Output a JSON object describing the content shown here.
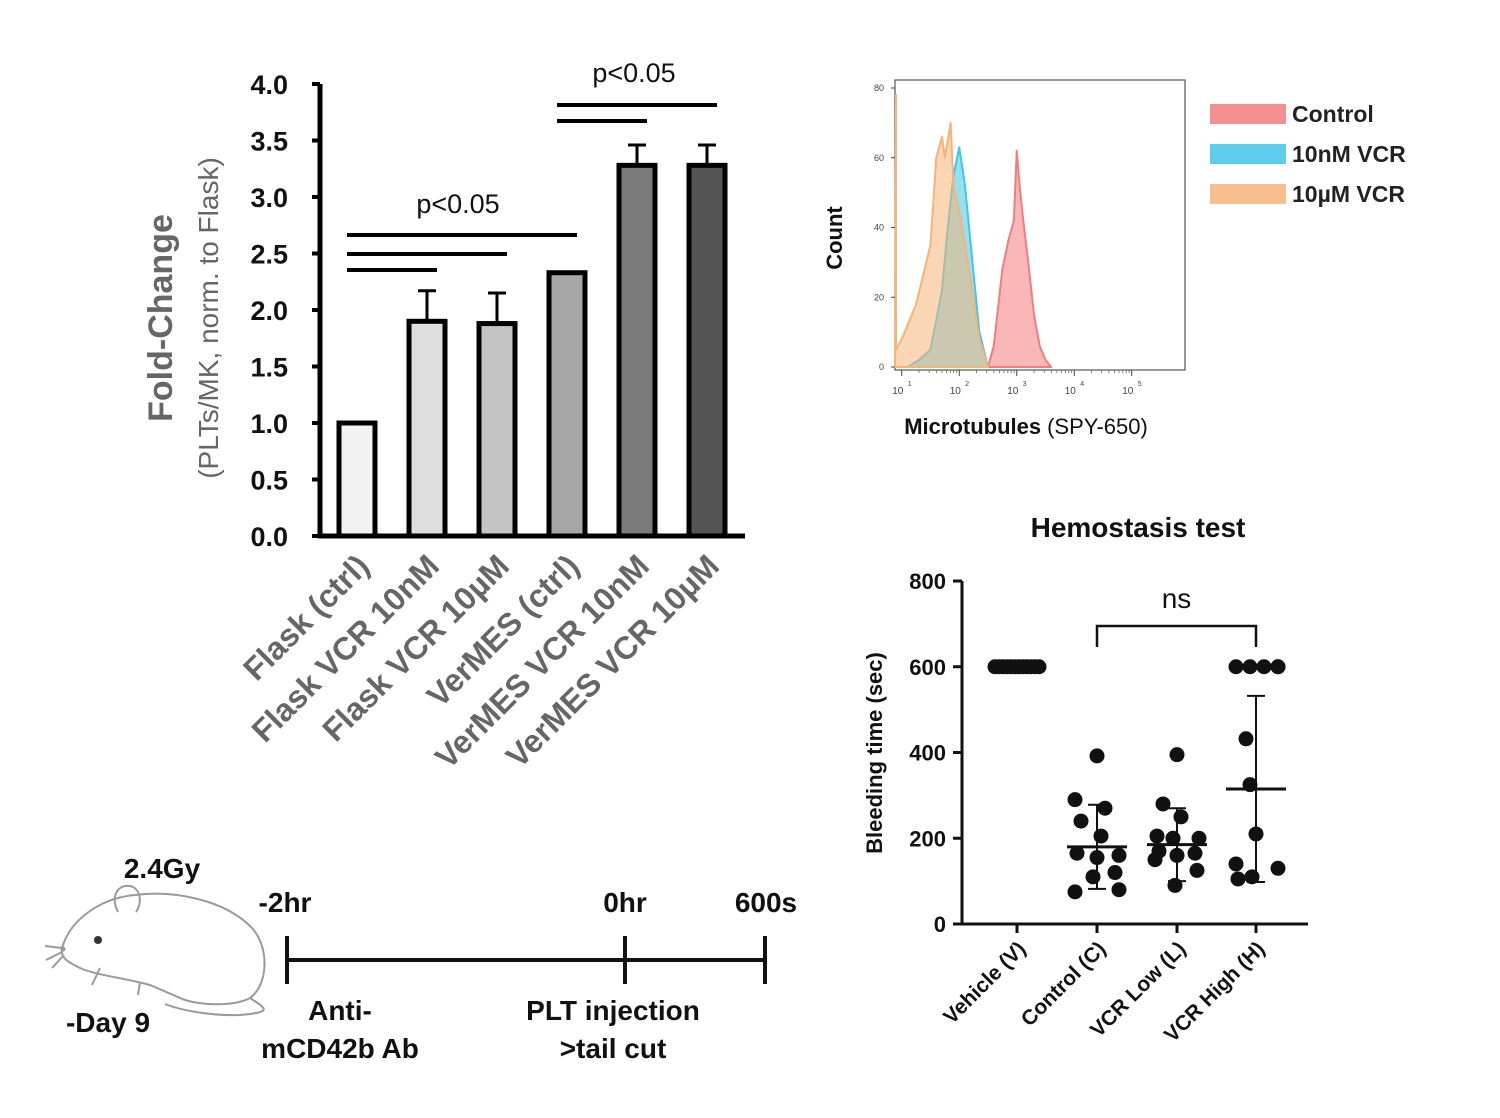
{
  "chart_data": [
    {
      "type": "bar",
      "title": "",
      "ylabel_main": "Fold-Change",
      "ylabel_sub": "(PLTs/MK, norm. to Flask)",
      "ylim": [
        0,
        4
      ],
      "yticks": [
        "0.0",
        "0.5",
        "1.0",
        "1.5",
        "2.0",
        "2.5",
        "3.0",
        "3.5",
        "4.0"
      ],
      "categories": [
        "Flask (ctrl)",
        "Flask VCR 10nM",
        "Flask VCR 10µM",
        "VerMES (ctrl)",
        "VerMES VCR 10nM",
        "VerMES VCR 10µM"
      ],
      "values": [
        1.0,
        1.9,
        1.88,
        2.33,
        3.28,
        3.28
      ],
      "errors": [
        0,
        0.27,
        0.27,
        0,
        0.18,
        0.18
      ],
      "colors": [
        "#f2f2f2",
        "#dedede",
        "#c4c4c4",
        "#a6a6a6",
        "#7a7a7a",
        "#555555"
      ],
      "annotations": [
        {
          "label": "p<0.05",
          "lines": [
            [
              0,
              1
            ],
            [
              0,
              2
            ],
            [
              0,
              3
            ]
          ]
        },
        {
          "label": "p<0.05",
          "lines": [
            [
              3,
              4
            ],
            [
              3,
              5
            ]
          ]
        }
      ]
    },
    {
      "type": "area",
      "title": "",
      "xlabel_bold": "Microtubules",
      "xlabel_rest": "(SPY-650)",
      "ylabel": "Count",
      "xscale": "log",
      "ylim": [
        0,
        80
      ],
      "yticks": [
        "0",
        "20",
        "40",
        "60",
        "80"
      ],
      "xticks": [
        "10",
        "10",
        "10",
        "10",
        "10"
      ],
      "xtick_exponents": [
        "1",
        "2",
        "3",
        "4",
        "5"
      ],
      "legend_position": "right",
      "series": [
        {
          "name": "Control",
          "color": "#f47c7c",
          "x": [
            2.5,
            2.6,
            2.75,
            2.85,
            2.95,
            3.0,
            3.05,
            3.1,
            3.2,
            3.3,
            3.4,
            3.5,
            3.6
          ],
          "y": [
            0,
            6,
            28,
            36,
            42,
            62,
            52,
            44,
            30,
            15,
            6,
            2,
            0
          ]
        },
        {
          "name": "10nM VCR",
          "color": "#3fc6e8",
          "x": [
            1.1,
            1.3,
            1.5,
            1.7,
            1.8,
            1.9,
            2.0,
            2.1,
            2.2,
            2.35,
            2.5
          ],
          "y": [
            0,
            2,
            5,
            22,
            40,
            55,
            63,
            52,
            35,
            10,
            0
          ]
        },
        {
          "name": "10µM VCR",
          "color": "#f5b479",
          "x": [
            0.55,
            0.6,
            1.0,
            1.25,
            1.5,
            1.6,
            1.7,
            1.75,
            1.85,
            1.9,
            2.0,
            2.2,
            2.35,
            2.5
          ],
          "y": [
            78,
            5,
            8,
            18,
            35,
            60,
            66,
            60,
            70,
            52,
            45,
            25,
            8,
            0
          ]
        }
      ]
    },
    {
      "type": "scatter",
      "title": "Hemostasis test",
      "ylabel": "Bleeding time (sec)",
      "ylim": [
        0,
        800
      ],
      "yticks": [
        "0",
        "200",
        "400",
        "600",
        "800"
      ],
      "categories": [
        "Vehicle (V)",
        "Control (C)",
        "VCR Low (L)",
        "VCR High (H)"
      ],
      "points": [
        [
          600,
          600,
          600,
          600,
          600,
          600,
          600,
          600,
          600,
          600,
          600,
          600
        ],
        [
          392,
          290,
          270,
          240,
          205,
          165,
          160,
          155,
          120,
          110,
          80,
          75
        ],
        [
          395,
          280,
          250,
          205,
          200,
          200,
          170,
          165,
          160,
          150,
          125,
          90
        ],
        [
          600,
          600,
          600,
          600,
          600,
          432,
          325,
          210,
          140,
          130,
          110,
          105
        ]
      ],
      "means": [
        600,
        180,
        185,
        315
      ],
      "sd_upper": [
        600,
        278,
        270,
        532
      ],
      "sd_lower": [
        600,
        82,
        100,
        98
      ],
      "significance": {
        "label": "ns",
        "from": 1,
        "to": 3
      }
    }
  ],
  "timeline": {
    "dose": "2.4Gy",
    "day": "-Day 9",
    "events": [
      {
        "time": "-2hr",
        "desc1": "Anti-",
        "desc2": "mCD42b Ab"
      },
      {
        "time": "0hr",
        "desc1": "PLT injection",
        "desc2": ">tail cut"
      },
      {
        "time": "600s",
        "desc1": "",
        "desc2": ""
      }
    ]
  }
}
